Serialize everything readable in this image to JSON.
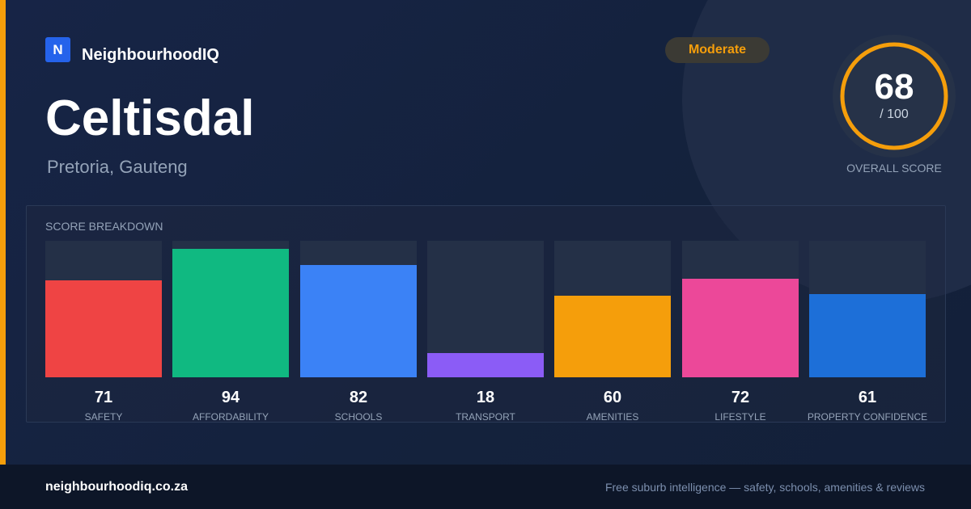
{
  "brand": {
    "logo_letter": "N",
    "name": "NeighbourhoodIQ"
  },
  "suburb": {
    "name": "Celtisdal",
    "location": "Pretoria, Gauteng"
  },
  "rating_badge": "Moderate",
  "overall": {
    "score": "68",
    "max": "/ 100",
    "label": "OVERALL SCORE",
    "fraction": 0.68
  },
  "breakdown": {
    "title": "SCORE BREAKDOWN",
    "items": [
      {
        "label": "SAFETY",
        "value": "71",
        "color": "#ef4444"
      },
      {
        "label": "AFFORDABILITY",
        "value": "94",
        "color": "#10b981"
      },
      {
        "label": "SCHOOLS",
        "value": "82",
        "color": "#3b82f6"
      },
      {
        "label": "TRANSPORT",
        "value": "18",
        "color": "#8b5cf6"
      },
      {
        "label": "AMENITIES",
        "value": "60",
        "color": "#f59e0b"
      },
      {
        "label": "LIFESTYLE",
        "value": "72",
        "color": "#ec4899"
      },
      {
        "label": "PROPERTY CONFIDENCE",
        "value": "61",
        "color": "#1d6fd8"
      }
    ]
  },
  "footer": {
    "domain": "neighbourhoodiq.co.za",
    "tagline": "Free suburb intelligence — safety, schools, amenities & reviews"
  },
  "colors": {
    "accent": "#f59e0b",
    "background": "#14223d",
    "footer": "#0d1628",
    "brand_blue": "#2563eb"
  }
}
